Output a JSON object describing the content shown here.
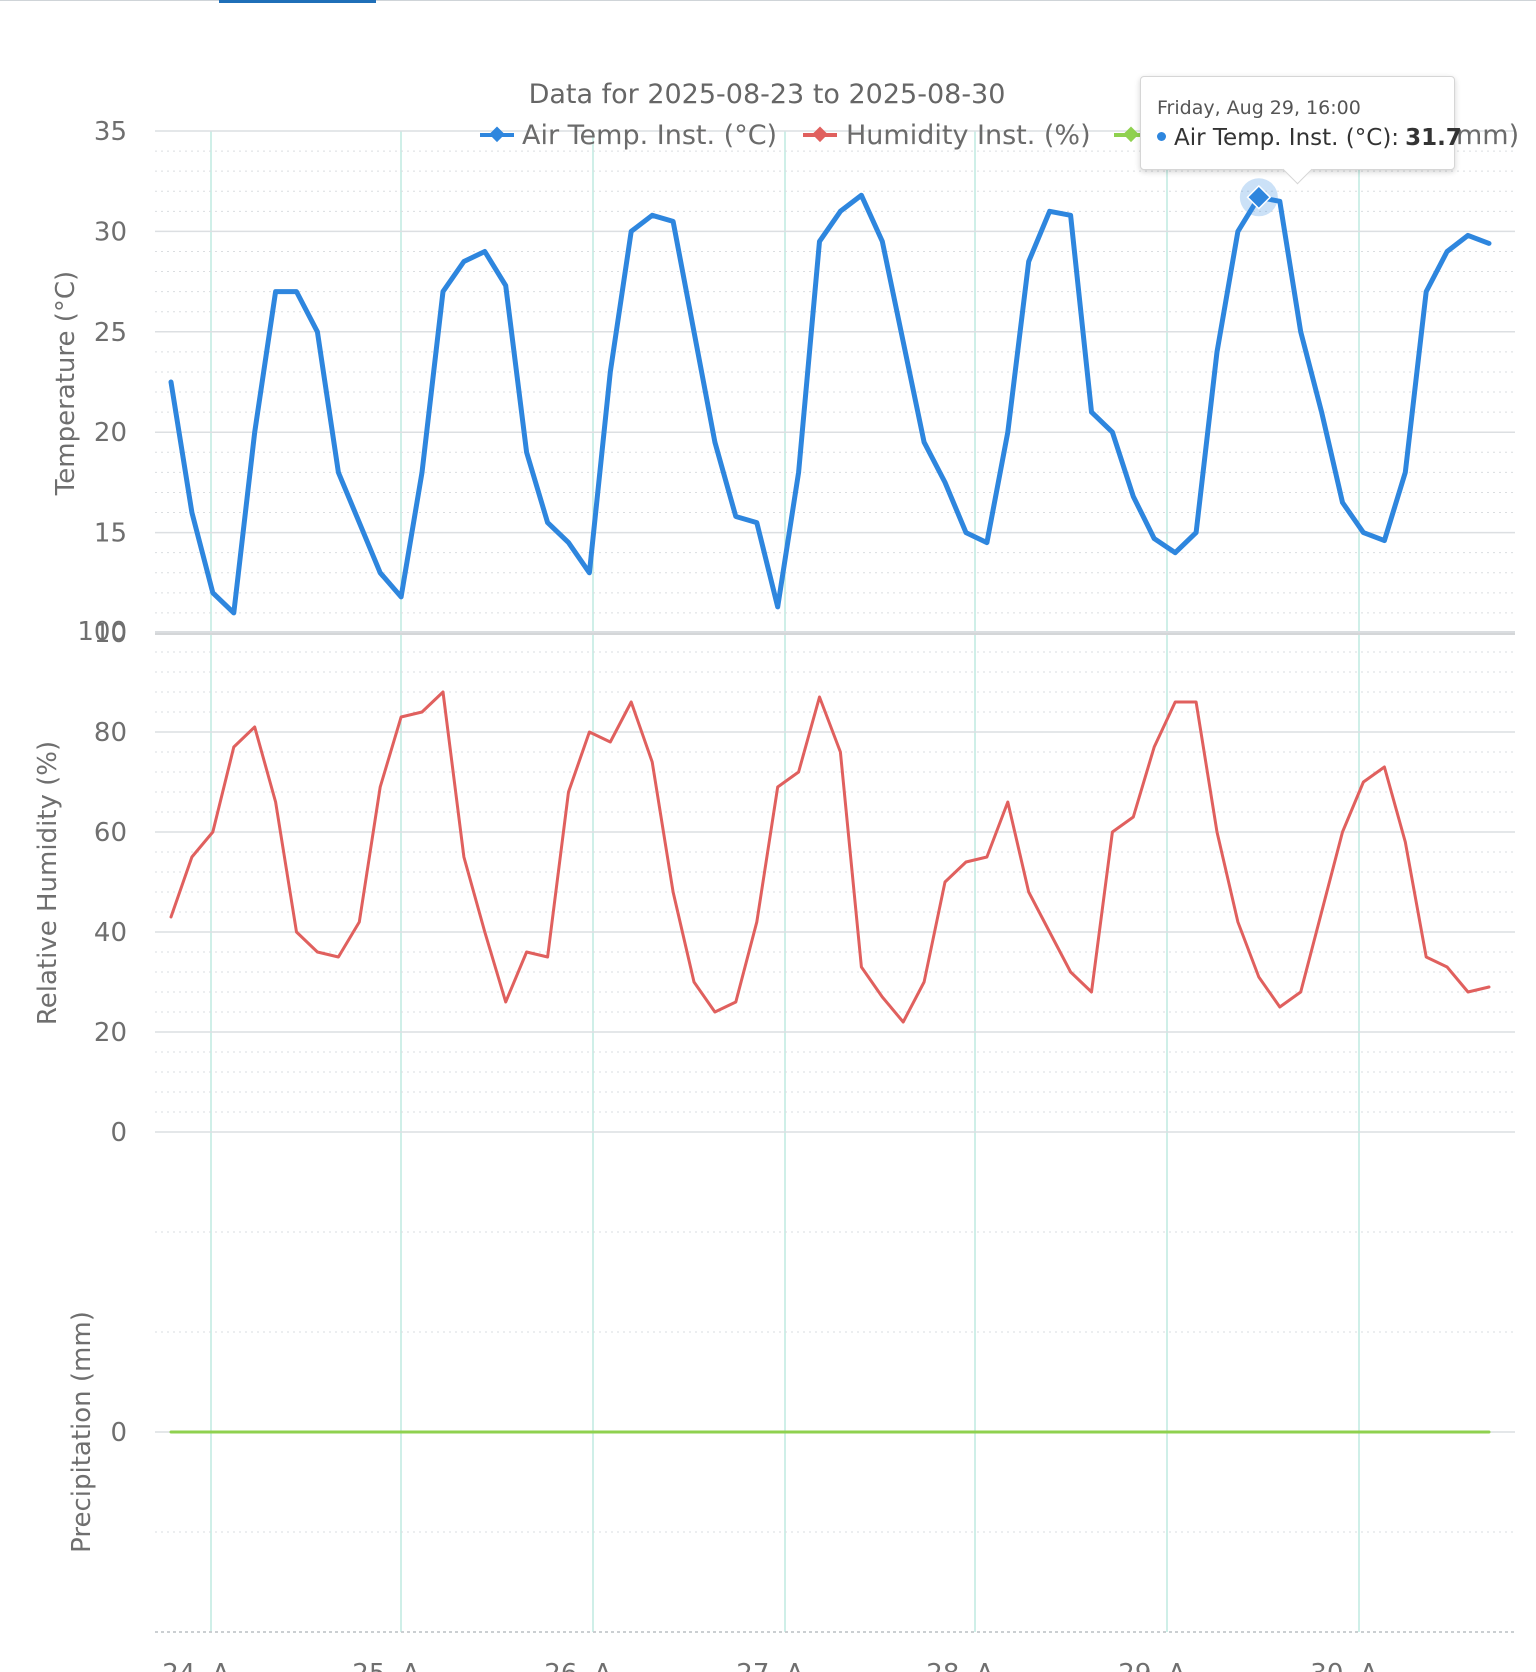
{
  "header": {
    "active_tab_label": ""
  },
  "chart_data": {
    "type": "line",
    "title": "Data for 2025-08-23 to 2025-08-30",
    "legend": {
      "placement": "top-right",
      "entries": [
        "Air Temp. Inst. (°C)",
        "Humidity Inst. (%)",
        "mm)"
      ]
    },
    "x_axis": {
      "start_label": "2025-08-23",
      "end_label": "2025-08-30",
      "tick_labels": [
        "24. A",
        "25. A",
        "26. A",
        "27. A",
        "28. A",
        "29. A",
        "30. A"
      ],
      "sample_hours": 3
    },
    "panels": [
      {
        "ylabel": "Temperature (°C)",
        "ylim": [
          10,
          35
        ],
        "yticks": [
          "10",
          "15",
          "20",
          "25",
          "30",
          "35"
        ],
        "series": [
          {
            "name": "Air Temp. Inst. (°C)",
            "color": "#2e86de",
            "marker": "diamond",
            "values": [
              22.5,
              16,
              12,
              11,
              20,
              27,
              27,
              25,
              18,
              15.5,
              13,
              11.8,
              18,
              27,
              28.5,
              29,
              27.3,
              19,
              15.5,
              14.5,
              13,
              23,
              30,
              30.8,
              30.5,
              25,
              19.5,
              15.8,
              15.5,
              11.3,
              18,
              29.5,
              31,
              31.8,
              29.5,
              24.5,
              19.5,
              17.5,
              15,
              14.5,
              20,
              28.5,
              31,
              30.8,
              21,
              20,
              16.8,
              14.7,
              14,
              15,
              24,
              30,
              31.7,
              31.5,
              25,
              21,
              16.5,
              15,
              14.6,
              18,
              27,
              29,
              29.8,
              29.4
            ]
          }
        ]
      },
      {
        "ylabel": "Relative Humidity (%)",
        "ylim": [
          0,
          100
        ],
        "yticks": [
          "0",
          "20",
          "40",
          "60",
          "80",
          "100"
        ],
        "series": [
          {
            "name": "Humidity Inst. (%)",
            "color": "#e0605e",
            "marker": "diamond",
            "values": [
              43,
              55,
              60,
              77,
              81,
              66,
              40,
              36,
              35,
              42,
              69,
              83,
              84,
              88,
              55,
              40,
              26,
              36,
              35,
              68,
              80,
              78,
              86,
              74,
              48,
              30,
              24,
              26,
              42,
              69,
              72,
              87,
              76,
              33,
              27,
              22,
              30,
              50,
              54,
              55,
              66,
              48,
              40,
              32,
              28,
              60,
              63,
              77,
              86,
              86,
              60,
              42,
              31,
              25,
              28,
              44,
              60,
              70,
              73,
              58,
              35,
              33,
              28,
              29
            ]
          }
        ]
      },
      {
        "ylabel": "Precipitation (mm)",
        "ylim": [
          -1,
          1
        ],
        "yticks": [
          "0"
        ],
        "series": [
          {
            "name": "mm)",
            "color": "#8fd14f",
            "marker": "diamond",
            "values": [
              0,
              0,
              0,
              0,
              0,
              0,
              0,
              0,
              0,
              0,
              0,
              0,
              0,
              0,
              0,
              0,
              0,
              0,
              0,
              0,
              0,
              0,
              0,
              0,
              0,
              0,
              0,
              0,
              0,
              0,
              0,
              0,
              0,
              0,
              0,
              0,
              0,
              0,
              0,
              0,
              0,
              0,
              0,
              0,
              0,
              0,
              0,
              0,
              0,
              0,
              0,
              0,
              0,
              0,
              0,
              0,
              0,
              0,
              0,
              0,
              0,
              0,
              0,
              0
            ]
          }
        ]
      }
    ],
    "grid": true,
    "tooltip": {
      "date_label": "Friday, Aug 29, 16:00",
      "series_label": "Air Temp. Inst. (°C):",
      "value": "31.7",
      "point_index": 52
    }
  }
}
